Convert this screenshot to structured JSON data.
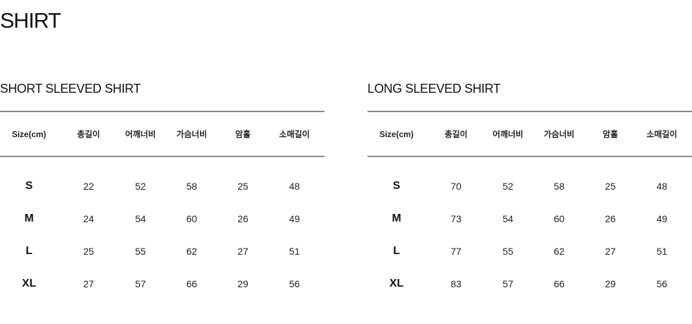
{
  "title": "SHIRT",
  "tables": [
    {
      "title": "SHORT SLEEVED SHIRT",
      "headers": [
        "Size(cm)",
        "총길이",
        "어깨너비",
        "가슴너비",
        "암홀",
        "소매길이"
      ],
      "rows": [
        [
          "S",
          "22",
          "52",
          "58",
          "25",
          "48"
        ],
        [
          "M",
          "24",
          "54",
          "60",
          "26",
          "49"
        ],
        [
          "L",
          "25",
          "55",
          "62",
          "27",
          "51"
        ],
        [
          "XL",
          "27",
          "57",
          "66",
          "29",
          "56"
        ]
      ]
    },
    {
      "title": "LONG SLEEVED SHIRT",
      "headers": [
        "Size(cm)",
        "총길이",
        "어깨너비",
        "가슴너비",
        "암홀",
        "소매길이"
      ],
      "rows": [
        [
          "S",
          "70",
          "52",
          "58",
          "25",
          "48"
        ],
        [
          "M",
          "73",
          "54",
          "60",
          "26",
          "49"
        ],
        [
          "L",
          "77",
          "55",
          "62",
          "27",
          "51"
        ],
        [
          "XL",
          "83",
          "57",
          "66",
          "29",
          "56"
        ]
      ]
    }
  ]
}
